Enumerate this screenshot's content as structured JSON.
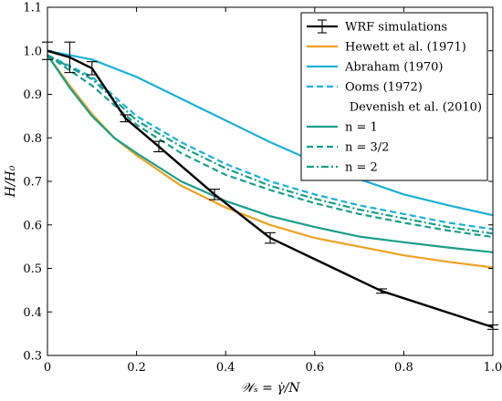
{
  "chart_data": {
    "type": "line",
    "xlabel": "𝒲ₛ = γ̇/N",
    "ylabel": "H/H₀",
    "xlim": [
      0,
      1.0
    ],
    "ylim": [
      0.3,
      1.1
    ],
    "xticks": [
      "0",
      "0.2",
      "0.4",
      "0.6",
      "0.8",
      "1.0"
    ],
    "yticks": [
      "0.3",
      "0.4",
      "0.5",
      "0.6",
      "0.7",
      "0.8",
      "0.9",
      "1.0",
      "1.1"
    ],
    "grid": false,
    "legend_position": "top-right",
    "legend": [
      {
        "label": "WRF simulations",
        "color": "#000000",
        "dash": "solid",
        "errorbar": true
      },
      {
        "label": "Hewett et al. (1971)",
        "color": "#f0a020",
        "dash": "solid"
      },
      {
        "label": "Abraham (1970)",
        "color": "#1ab0d8",
        "dash": "solid"
      },
      {
        "label": "Ooms (1972)",
        "color": "#1ab0d8",
        "dash": "dashed"
      },
      {
        "label": "Devenish et al. (2010)",
        "color": null,
        "dash": "none"
      },
      {
        "label": "n = 1",
        "color": "#1a9e8a",
        "dash": "solid"
      },
      {
        "label": "n = 3/2",
        "color": "#1a9e8a",
        "dash": "dashed"
      },
      {
        "label": "n = 2",
        "color": "#1a9e8a",
        "dash": "dashdot"
      }
    ],
    "series": [
      {
        "name": "WRF simulations",
        "color": "#000000",
        "dash": "solid",
        "x": [
          0,
          0.05,
          0.1,
          0.175,
          0.25,
          0.375,
          0.5,
          0.75,
          1.0
        ],
        "y": [
          1.0,
          0.985,
          0.96,
          0.845,
          0.78,
          0.67,
          0.57,
          0.448,
          0.365
        ],
        "err": [
          0.02,
          0.035,
          0.015,
          0.008,
          0.012,
          0.012,
          0.012,
          0.005,
          0.005
        ]
      },
      {
        "name": "Hewett et al. (1971)",
        "color": "#f0a020",
        "dash": "solid",
        "x": [
          0,
          0.05,
          0.1,
          0.15,
          0.2,
          0.3,
          0.4,
          0.5,
          0.6,
          0.7,
          0.8,
          0.9,
          1.0
        ],
        "y": [
          0.99,
          0.92,
          0.855,
          0.8,
          0.76,
          0.69,
          0.64,
          0.6,
          0.57,
          0.55,
          0.53,
          0.515,
          0.502
        ]
      },
      {
        "name": "Abraham (1970)",
        "color": "#1ab0d8",
        "dash": "solid",
        "x": [
          0,
          0.1,
          0.2,
          0.3,
          0.4,
          0.5,
          0.6,
          0.7,
          0.8,
          0.9,
          1.0
        ],
        "y": [
          1.0,
          0.98,
          0.94,
          0.89,
          0.84,
          0.79,
          0.745,
          0.705,
          0.67,
          0.645,
          0.622
        ]
      },
      {
        "name": "Ooms (1972)",
        "color": "#1ab0d8",
        "dash": "dashed",
        "x": [
          0,
          0.1,
          0.2,
          0.3,
          0.4,
          0.5,
          0.6,
          0.7,
          0.8,
          0.9,
          1.0
        ],
        "y": [
          0.99,
          0.94,
          0.85,
          0.79,
          0.74,
          0.7,
          0.67,
          0.645,
          0.625,
          0.605,
          0.59
        ]
      },
      {
        "name": "n = 1",
        "color": "#1a9e8a",
        "dash": "solid",
        "x": [
          0,
          0.05,
          0.1,
          0.15,
          0.2,
          0.3,
          0.4,
          0.5,
          0.6,
          0.7,
          0.8,
          0.9,
          1.0
        ],
        "y": [
          0.99,
          0.915,
          0.85,
          0.8,
          0.765,
          0.7,
          0.655,
          0.62,
          0.595,
          0.573,
          0.56,
          0.548,
          0.537
        ]
      },
      {
        "name": "n = 3/2",
        "color": "#1a9e8a",
        "dash": "dashed",
        "x": [
          0,
          0.1,
          0.2,
          0.3,
          0.4,
          0.5,
          0.6,
          0.7,
          0.8,
          0.9,
          1.0
        ],
        "y": [
          0.99,
          0.92,
          0.83,
          0.765,
          0.715,
          0.68,
          0.65,
          0.625,
          0.605,
          0.587,
          0.572
        ]
      },
      {
        "name": "n = 2",
        "color": "#1a9e8a",
        "dash": "dashdot",
        "x": [
          0,
          0.1,
          0.2,
          0.3,
          0.4,
          0.5,
          0.6,
          0.7,
          0.8,
          0.9,
          1.0
        ],
        "y": [
          0.99,
          0.935,
          0.84,
          0.78,
          0.73,
          0.69,
          0.66,
          0.635,
          0.615,
          0.595,
          0.58
        ]
      }
    ]
  }
}
